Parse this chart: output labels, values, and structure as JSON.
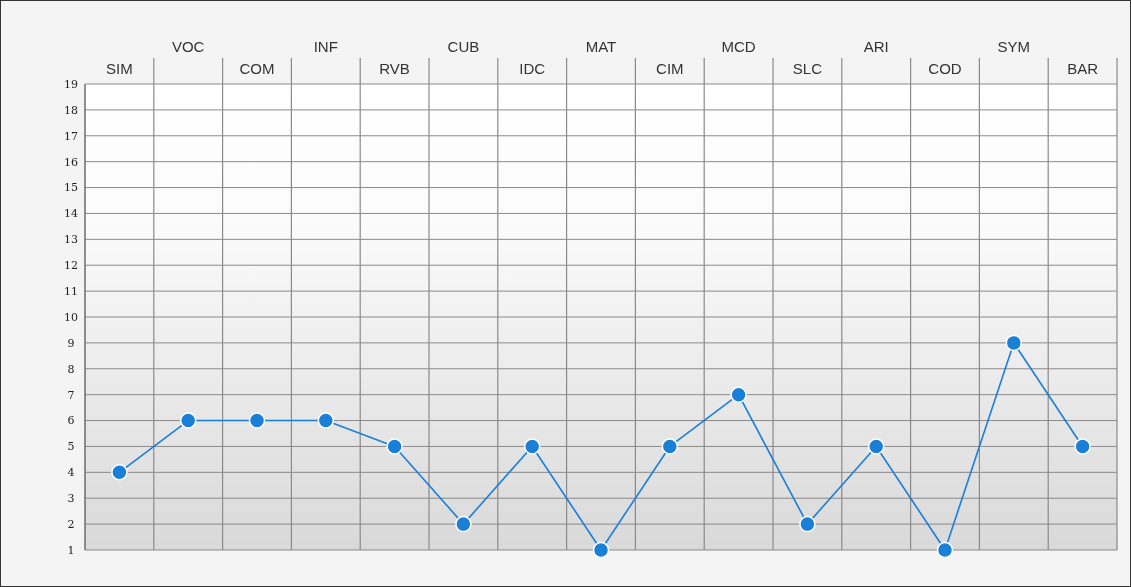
{
  "chart_data": {
    "type": "line",
    "categories": [
      "SIM",
      "VOC",
      "COM",
      "INF",
      "RVB",
      "CUB",
      "IDC",
      "MAT",
      "CIM",
      "MCD",
      "SLC",
      "ARI",
      "COD",
      "SYM",
      "BAR"
    ],
    "series": [
      {
        "color": "#1a7fd6",
        "values": [
          4,
          6,
          6,
          6,
          5,
          2,
          5,
          1,
          5,
          7,
          2,
          5,
          1,
          9,
          5
        ]
      }
    ],
    "ylim": [
      1,
      19
    ],
    "yticks": [
      1,
      2,
      3,
      4,
      5,
      6,
      7,
      8,
      9,
      10,
      11,
      12,
      13,
      14,
      15,
      16,
      17,
      18,
      19
    ],
    "grid": true,
    "marker": "circle",
    "line_style": "solid"
  }
}
